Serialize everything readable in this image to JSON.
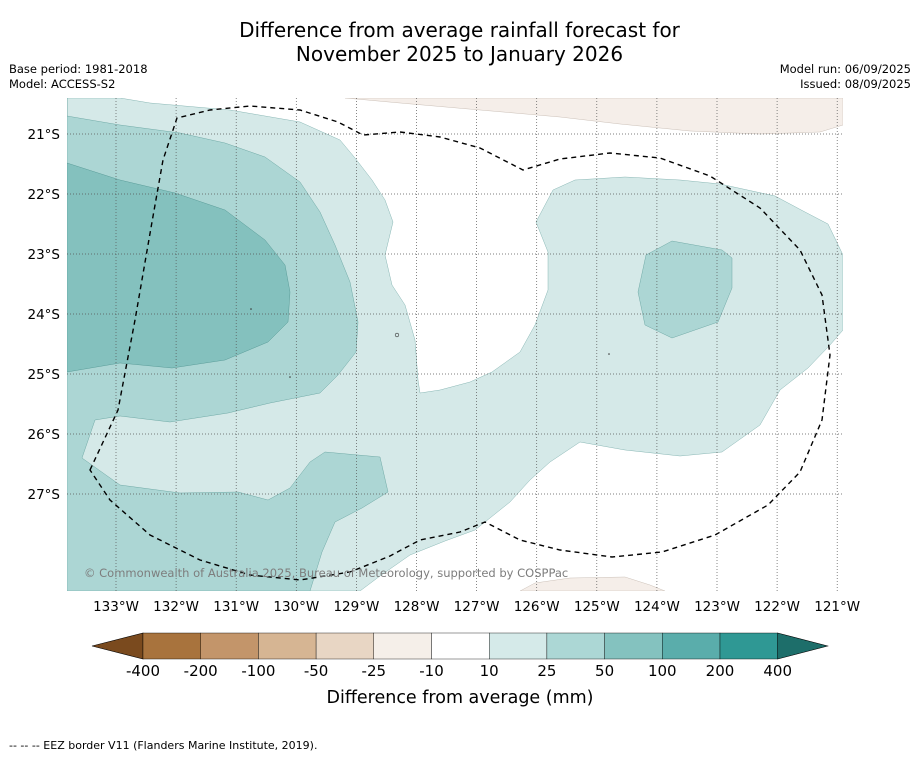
{
  "title_line1": "Difference from average rainfall forecast for",
  "title_line2": "November 2025 to January 2026",
  "base_period": "Base period: 1981-2018",
  "model": "Model: ACCESS-S2",
  "model_run": "Model run: 06/09/2025",
  "issued": "Issued: 08/09/2025",
  "copyright": "© Commonwealth of Australia 2025, Bureau of Meteorology, supported by COSPPac",
  "lon_labels": [
    "133°W",
    "132°W",
    "131°W",
    "130°W",
    "129°W",
    "128°W",
    "127°W",
    "126°W",
    "125°W",
    "124°W",
    "123°W",
    "122°W",
    "121°W"
  ],
  "lat_labels": [
    "21°S",
    "22°S",
    "23°S",
    "24°S",
    "25°S",
    "26°S",
    "27°S"
  ],
  "colorbar": {
    "title": "Difference from average (mm)",
    "tick_labels": [
      "-400",
      "-200",
      "-100",
      "-50",
      "-25",
      "-10",
      "10",
      "25",
      "50",
      "100",
      "200",
      "400"
    ],
    "colors": [
      "#7a4a1e",
      "#a8733d",
      "#c3956a",
      "#d6b593",
      "#e8d6c4",
      "#f5efe9",
      "#ffffff",
      "#d5eae9",
      "#acd7d5",
      "#84c2bf",
      "#5aadab",
      "#2f9894",
      "#1d6e6a"
    ]
  },
  "footnote": "-- -- -- EEZ border V11 (Flanders Marine Institute, 2019)."
}
